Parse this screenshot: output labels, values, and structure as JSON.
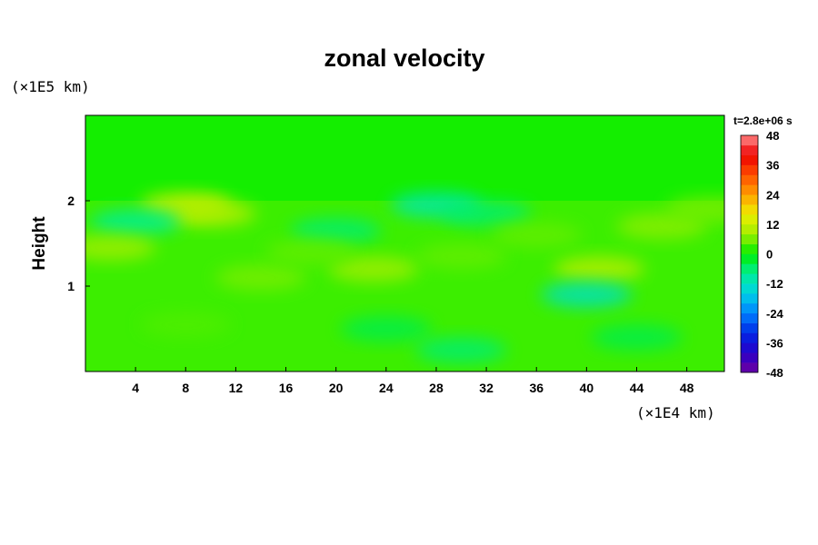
{
  "chart_data": {
    "type": "heatmap",
    "title": "zonal velocity",
    "xlabel": "",
    "ylabel": "Height",
    "x_unit": "(×1E4 km)",
    "y_unit": "(×1E5 km)",
    "time_label": "t=2.8e+06 s",
    "xlim": [
      0,
      51
    ],
    "ylim": [
      0,
      3
    ],
    "x_ticks": [
      "4",
      "8",
      "12",
      "16",
      "20",
      "24",
      "28",
      "32",
      "36",
      "40",
      "44",
      "48"
    ],
    "y_ticks": [
      "1",
      "2"
    ],
    "colorbar": {
      "min": -48,
      "max": 48,
      "interval": 4,
      "tick_labels": [
        "48",
        "36",
        "24",
        "12",
        "0",
        "-12",
        "-24",
        "-36",
        "-48"
      ]
    },
    "features": [
      {
        "x": 8,
        "y": 1.95,
        "value": 12
      },
      {
        "x": 10,
        "y": 1.85,
        "value": 10
      },
      {
        "x": 4,
        "y": 1.75,
        "value": -8
      },
      {
        "x": 28,
        "y": 1.95,
        "value": -10
      },
      {
        "x": 32,
        "y": 1.85,
        "value": -6
      },
      {
        "x": 20,
        "y": 1.65,
        "value": -6
      },
      {
        "x": 2,
        "y": 1.45,
        "value": 8
      },
      {
        "x": 23,
        "y": 1.2,
        "value": 8
      },
      {
        "x": 41,
        "y": 1.2,
        "value": 10
      },
      {
        "x": 40,
        "y": 0.9,
        "value": -12
      },
      {
        "x": 46,
        "y": 1.7,
        "value": 7
      },
      {
        "x": 14,
        "y": 1.1,
        "value": 6
      },
      {
        "x": 30,
        "y": 1.35,
        "value": 5
      },
      {
        "x": 36,
        "y": 1.6,
        "value": 5
      },
      {
        "x": 18,
        "y": 1.4,
        "value": 5
      },
      {
        "x": 8,
        "y": 0.55,
        "value": 4
      },
      {
        "x": 24,
        "y": 0.5,
        "value": -4
      },
      {
        "x": 30,
        "y": 0.25,
        "value": -6
      },
      {
        "x": 44,
        "y": 0.4,
        "value": -4
      },
      {
        "x": 50,
        "y": 1.9,
        "value": 6
      }
    ]
  }
}
